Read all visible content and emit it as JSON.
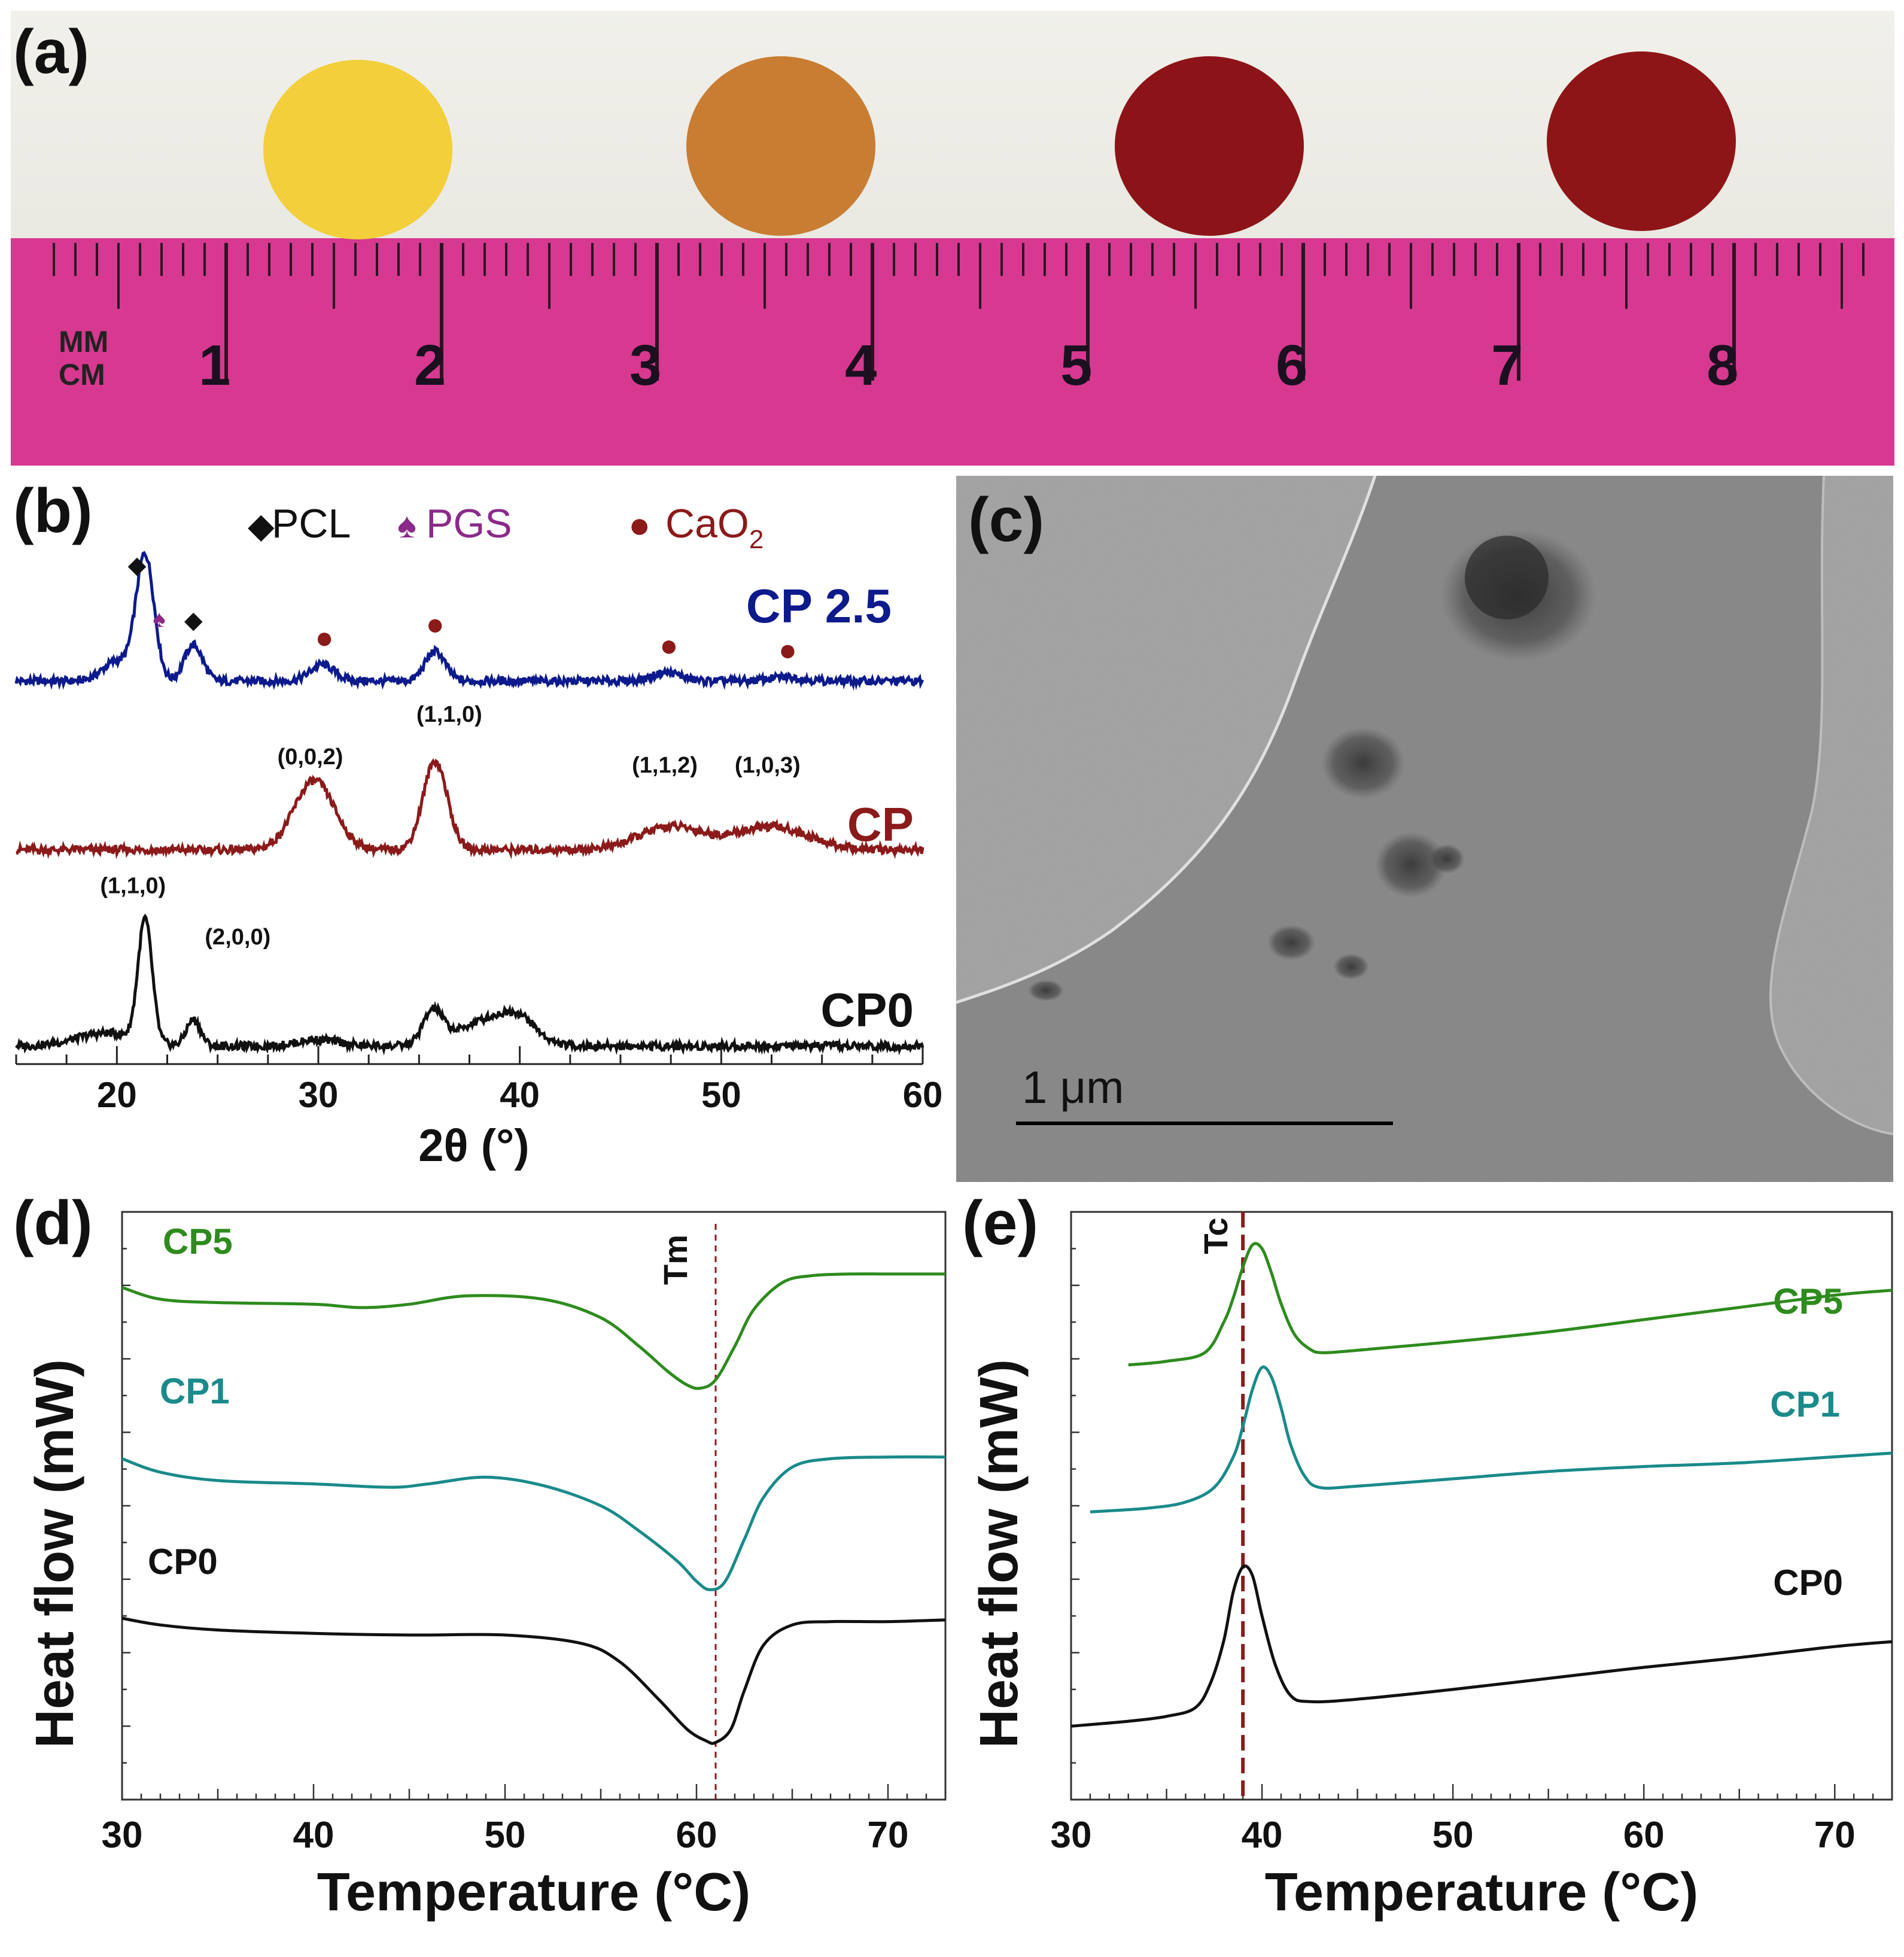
{
  "panels": {
    "a": {
      "label": "(a)"
    },
    "b": {
      "label": "(b)"
    },
    "c": {
      "label": "(c)"
    },
    "d": {
      "label": "(d)"
    },
    "e": {
      "label": "(e)"
    }
  },
  "photo": {
    "ruler_unit_top": "MM",
    "ruler_unit_bottom": "CM",
    "ruler_numbers": [
      "1",
      "2",
      "3",
      "4",
      "5",
      "6",
      "7",
      "8"
    ],
    "disc_colors": [
      "#f2cf3b",
      "#c87d33",
      "#8c1418",
      "#8e1517"
    ],
    "ruler_color": "#d6398f"
  },
  "tem": {
    "scale_bar_label": "1  μm"
  },
  "chart_data": [
    {
      "panel": "b",
      "type": "line",
      "title": "",
      "xlabel": "2θ (°)",
      "ylabel": "",
      "xlim": [
        15,
        60
      ],
      "xticks": [
        "20",
        "30",
        "40",
        "50",
        "60"
      ],
      "legend": {
        "pcl_symbol": "◆",
        "pcl_label": "PCL",
        "pgs_symbol": "♠",
        "pgs_label": "PGS",
        "cao2_symbol": "●",
        "cao2_label": "CaO",
        "cao2_subscript": "2"
      },
      "colors": {
        "pcl": "#111111",
        "pgs": "#8a2a8a",
        "cao2": "#8b1a1a"
      },
      "series": [
        {
          "name": "CP 2.5",
          "color": "#0d1a8c",
          "peaks": [
            {
              "x": 20.0,
              "h": 0.3,
              "w": 0.7
            },
            {
              "x": 21.4,
              "h": 1.9,
              "w": 0.45
            },
            {
              "x": 23.8,
              "h": 0.55,
              "w": 0.45
            },
            {
              "x": 30.2,
              "h": 0.25,
              "w": 0.6
            },
            {
              "x": 35.8,
              "h": 0.45,
              "w": 0.5
            },
            {
              "x": 47.3,
              "h": 0.13,
              "w": 0.7
            },
            {
              "x": 53.2,
              "h": 0.06,
              "w": 0.8
            }
          ]
        },
        {
          "name": "CP",
          "color": "#8b1a1a",
          "peaks": [
            {
              "x": 29.8,
              "h": 1.05,
              "w": 1.0
            },
            {
              "x": 35.8,
              "h": 1.35,
              "w": 0.6
            },
            {
              "x": 47.5,
              "h": 0.35,
              "w": 1.6
            },
            {
              "x": 52.5,
              "h": 0.35,
              "w": 1.8
            }
          ]
        },
        {
          "name": "CP0",
          "color": "#111111",
          "peaks": [
            {
              "x": 19.5,
              "h": 0.2,
              "w": 1.5
            },
            {
              "x": 21.4,
              "h": 1.85,
              "w": 0.35
            },
            {
              "x": 23.8,
              "h": 0.4,
              "w": 0.35
            },
            {
              "x": 30.0,
              "h": 0.1,
              "w": 1.0
            },
            {
              "x": 35.7,
              "h": 0.5,
              "w": 0.5
            },
            {
              "x": 38.5,
              "h": 0.4,
              "w": 1.5
            },
            {
              "x": 40.0,
              "h": 0.25,
              "w": 0.8
            }
          ]
        }
      ],
      "peak_markers": [
        {
          "type": "pcl",
          "x": 21.0,
          "series": "CP 2.5"
        },
        {
          "type": "pgs",
          "x": 22.1,
          "series": "CP 2.5"
        },
        {
          "type": "pcl",
          "x": 23.8,
          "series": "CP 2.5"
        },
        {
          "type": "cao2",
          "x": 30.3,
          "series": "CP 2.5"
        },
        {
          "type": "cao2",
          "x": 35.8,
          "series": "CP 2.5"
        },
        {
          "type": "cao2",
          "x": 47.4,
          "series": "CP 2.5"
        },
        {
          "type": "cao2",
          "x": 53.3,
          "series": "CP 2.5"
        }
      ],
      "annotations": [
        {
          "text": "(1,1,0)",
          "x": 36.5,
          "series": "CP 2.5"
        },
        {
          "text": "(0,0,2)",
          "x": 29.6,
          "series": "CP"
        },
        {
          "text": "(1,1,2)",
          "x": 47.2,
          "series": "CP"
        },
        {
          "text": "(1,0,3)",
          "x": 52.3,
          "series": "CP"
        },
        {
          "text": "(1,1,0)",
          "x": 20.8,
          "series": "CP0"
        },
        {
          "text": "(2,0,0)",
          "x": 26.0,
          "series": "CP0"
        }
      ]
    },
    {
      "panel": "d",
      "type": "line",
      "title": "",
      "xlabel": "Temperature (°C)",
      "ylabel": "Heat flow (mW)",
      "xlim": [
        30,
        73
      ],
      "xticks": [
        "30",
        "40",
        "50",
        "60",
        "70"
      ],
      "reference_line": {
        "label": "Tm",
        "x": 61.0,
        "color": "#8b1a1a"
      },
      "series": [
        {
          "name": "CP5",
          "color": "#2e8b1e",
          "x": [
            30,
            32,
            35,
            40,
            42.5,
            45,
            48,
            52,
            55,
            57,
            58.5,
            59.5,
            60.2,
            61,
            62,
            63,
            64.5,
            66,
            68,
            70,
            73
          ],
          "y": [
            3.05,
            2.98,
            2.96,
            2.95,
            2.93,
            2.95,
            3.0,
            2.98,
            2.87,
            2.7,
            2.55,
            2.47,
            2.45,
            2.5,
            2.7,
            2.92,
            3.08,
            3.12,
            3.13,
            3.13,
            3.13
          ]
        },
        {
          "name": "CP1",
          "color": "#1a8a8a",
          "x": [
            30,
            32,
            35,
            40,
            44,
            46,
            49,
            52,
            55,
            57,
            59,
            60,
            60.7,
            61.5,
            62.5,
            63.5,
            65,
            67,
            70,
            73
          ],
          "y": [
            2.03,
            1.95,
            1.9,
            1.88,
            1.86,
            1.88,
            1.92,
            1.87,
            1.75,
            1.6,
            1.42,
            1.3,
            1.25,
            1.3,
            1.55,
            1.8,
            1.98,
            2.03,
            2.04,
            2.04
          ]
        },
        {
          "name": "CP0",
          "color": "#111111",
          "x": [
            30,
            32,
            35,
            40,
            45,
            50,
            54,
            56,
            58,
            59.5,
            60.5,
            61,
            61.8,
            62.5,
            63.5,
            65,
            67,
            70,
            73
          ],
          "y": [
            1.08,
            1.04,
            1.01,
            0.99,
            0.98,
            0.98,
            0.93,
            0.82,
            0.6,
            0.42,
            0.35,
            0.34,
            0.42,
            0.65,
            0.92,
            1.04,
            1.06,
            1.06,
            1.07
          ]
        }
      ]
    },
    {
      "panel": "e",
      "type": "line",
      "title": "",
      "xlabel": "Temperature (°C)",
      "ylabel": "Heat flow (mW)",
      "xlim": [
        30,
        73
      ],
      "xticks": [
        "30",
        "40",
        "50",
        "60",
        "70"
      ],
      "reference_line": {
        "label": "Tc",
        "x": 39.0,
        "color": "#8b1a1a"
      },
      "series": [
        {
          "name": "CP5",
          "color": "#2e8b1e",
          "x": [
            33,
            35,
            37,
            38,
            38.5,
            39,
            39.5,
            40,
            40.5,
            41,
            41.7,
            42.5,
            43.2,
            45,
            50,
            55,
            60,
            65,
            70,
            73
          ],
          "y": [
            3.05,
            3.08,
            3.15,
            3.4,
            3.6,
            3.85,
            4.03,
            4.0,
            3.8,
            3.55,
            3.3,
            3.18,
            3.15,
            3.17,
            3.24,
            3.32,
            3.42,
            3.52,
            3.62,
            3.66
          ]
        },
        {
          "name": "CP1",
          "color": "#1a8a8a",
          "x": [
            31,
            34,
            36,
            37.5,
            38.5,
            39,
            39.5,
            40,
            40.5,
            41,
            41.5,
            42.2,
            43,
            45,
            50,
            55,
            60,
            65,
            70,
            73
          ],
          "y": [
            1.85,
            1.88,
            1.93,
            2.05,
            2.3,
            2.55,
            2.85,
            3.03,
            2.95,
            2.7,
            2.4,
            2.15,
            2.05,
            2.06,
            2.12,
            2.18,
            2.22,
            2.25,
            2.3,
            2.33
          ]
        },
        {
          "name": "CP0",
          "color": "#111111",
          "x": [
            30,
            33,
            35,
            36.5,
            37.3,
            38,
            38.5,
            39,
            39.5,
            40,
            40.7,
            41.5,
            42.5,
            45,
            50,
            55,
            60,
            65,
            70,
            73
          ],
          "y": [
            0.1,
            0.14,
            0.18,
            0.25,
            0.45,
            0.8,
            1.2,
            1.4,
            1.33,
            1.0,
            0.6,
            0.35,
            0.3,
            0.32,
            0.4,
            0.49,
            0.58,
            0.66,
            0.75,
            0.79
          ]
        }
      ]
    }
  ]
}
